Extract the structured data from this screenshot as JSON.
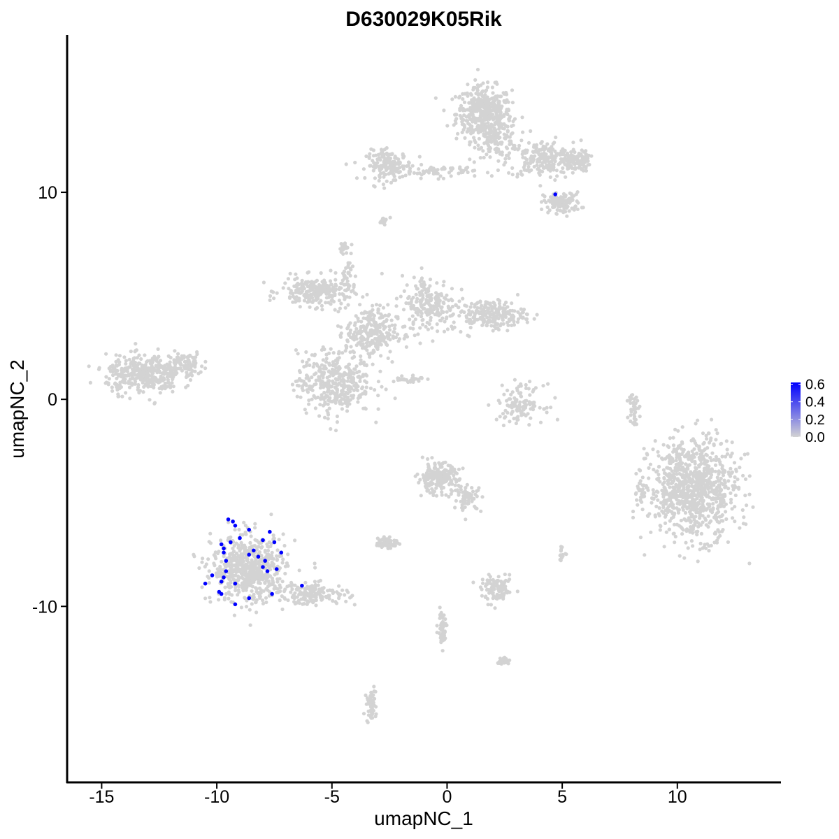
{
  "chart_data": {
    "type": "scatter",
    "title": "D630029K05Rik",
    "xlabel": "umapNC_1",
    "ylabel": "umapNC_2",
    "xlim": [
      -16.5,
      14.5
    ],
    "ylim": [
      -18.5,
      17.6
    ],
    "x_ticks": [
      "-15",
      "-10",
      "-5",
      "0",
      "5",
      "10"
    ],
    "y_ticks": [
      "10",
      "0",
      "-10"
    ],
    "grid": false,
    "legend_position": "right",
    "colors": {
      "low": "#d3d3d3",
      "high": "#0000ff"
    },
    "legend": {
      "ticks": [
        "0.6",
        "0.4",
        "0.2",
        "0.0"
      ],
      "min": 0.0,
      "max": 0.62
    },
    "background_clusters": [
      {
        "name": "cluster-top",
        "cx": 1.6,
        "cy": 13.8,
        "rx": 1.2,
        "ry": 1.3,
        "n": 420
      },
      {
        "name": "cluster-top-stalk",
        "cx": 2.2,
        "cy": 12.6,
        "rx": 0.9,
        "ry": 0.9,
        "n": 120
      },
      {
        "name": "cluster-top-arm-right",
        "cx": 4.2,
        "cy": 11.6,
        "rx": 1.6,
        "ry": 0.9,
        "n": 230
      },
      {
        "name": "cluster-top-right-tip",
        "cx": 5.6,
        "cy": 11.5,
        "rx": 0.6,
        "ry": 0.5,
        "n": 90
      },
      {
        "name": "cluster-top-bottom-right",
        "cx": 5.0,
        "cy": 9.5,
        "rx": 0.8,
        "ry": 0.5,
        "n": 110
      },
      {
        "name": "cluster-top-arm-left",
        "cx": -2.5,
        "cy": 11.3,
        "rx": 1.0,
        "ry": 0.7,
        "n": 170
      },
      {
        "name": "cluster-top-bridge",
        "cx": -0.3,
        "cy": 11.0,
        "rx": 1.5,
        "ry": 0.3,
        "n": 60
      },
      {
        "name": "cluster-central-left-arm",
        "cx": -5.7,
        "cy": 5.2,
        "rx": 1.5,
        "ry": 0.7,
        "n": 240
      },
      {
        "name": "cluster-central-hub",
        "cx": -3.3,
        "cy": 3.2,
        "rx": 1.1,
        "ry": 1.3,
        "n": 260
      },
      {
        "name": "cluster-central-right-arm",
        "cx": -0.8,
        "cy": 4.6,
        "rx": 1.2,
        "ry": 1.4,
        "n": 200
      },
      {
        "name": "cluster-central-far-right",
        "cx": 1.8,
        "cy": 4.1,
        "rx": 1.6,
        "ry": 0.7,
        "n": 220
      },
      {
        "name": "cluster-central-bottom",
        "cx": -4.9,
        "cy": 0.8,
        "rx": 1.6,
        "ry": 1.5,
        "n": 380
      },
      {
        "name": "cluster-central-stem",
        "cx": -4.3,
        "cy": 6.0,
        "rx": 0.3,
        "ry": 1.6,
        "n": 40
      },
      {
        "name": "cluster-left",
        "cx": -13.2,
        "cy": 1.2,
        "rx": 1.6,
        "ry": 0.9,
        "n": 360
      },
      {
        "name": "cluster-left-tail",
        "cx": -11.4,
        "cy": 1.7,
        "rx": 0.8,
        "ry": 0.6,
        "n": 90
      },
      {
        "name": "cluster-mid-right",
        "cx": 3.2,
        "cy": -0.2,
        "rx": 1.0,
        "ry": 0.9,
        "n": 120
      },
      {
        "name": "cluster-right-large",
        "cx": 10.7,
        "cy": -4.3,
        "rx": 1.9,
        "ry": 2.4,
        "n": 900
      },
      {
        "name": "cluster-right-left-edge",
        "cx": 8.4,
        "cy": -4.5,
        "rx": 0.3,
        "ry": 0.6,
        "n": 30
      },
      {
        "name": "cluster-center-lower",
        "cx": -0.4,
        "cy": -3.8,
        "rx": 0.9,
        "ry": 0.7,
        "n": 200
      },
      {
        "name": "cluster-center-lower-tail",
        "cx": 0.9,
        "cy": -4.8,
        "rx": 0.6,
        "ry": 0.6,
        "n": 60
      },
      {
        "name": "cluster-bottom-left-main",
        "cx": -8.6,
        "cy": -8.2,
        "rx": 1.6,
        "ry": 1.6,
        "n": 640
      },
      {
        "name": "cluster-bottom-left-tail",
        "cx": -5.8,
        "cy": -9.4,
        "rx": 1.5,
        "ry": 0.5,
        "n": 150
      },
      {
        "name": "cluster-small-a",
        "cx": -2.6,
        "cy": -6.9,
        "rx": 0.5,
        "ry": 0.3,
        "n": 60
      },
      {
        "name": "cluster-small-b",
        "cx": 2.2,
        "cy": -9.2,
        "rx": 0.7,
        "ry": 0.6,
        "n": 100
      },
      {
        "name": "cluster-small-c",
        "cx": 5.0,
        "cy": -7.5,
        "rx": 0.2,
        "ry": 0.3,
        "n": 15
      },
      {
        "name": "cluster-small-d",
        "cx": 2.4,
        "cy": -12.6,
        "rx": 0.3,
        "ry": 0.2,
        "n": 25
      },
      {
        "name": "cluster-streak-bottom",
        "cx": -3.3,
        "cy": -14.8,
        "rx": 0.2,
        "ry": 0.8,
        "n": 60
      },
      {
        "name": "cluster-streak-bottom-2",
        "cx": -0.2,
        "cy": -11.0,
        "rx": 0.2,
        "ry": 0.8,
        "n": 50
      },
      {
        "name": "cluster-streak-right",
        "cx": 8.1,
        "cy": -0.3,
        "rx": 0.2,
        "ry": 0.9,
        "n": 40
      },
      {
        "name": "cluster-streak-center",
        "cx": -1.7,
        "cy": 1.0,
        "rx": 0.7,
        "ry": 0.2,
        "n": 30
      },
      {
        "name": "cluster-top-small",
        "cx": -2.8,
        "cy": 8.6,
        "rx": 0.2,
        "ry": 0.3,
        "n": 12
      },
      {
        "name": "cluster-top-center-small",
        "cx": -4.5,
        "cy": 7.4,
        "rx": 0.2,
        "ry": 0.2,
        "n": 12
      }
    ],
    "highlighted_points": {
      "x": [
        4.7,
        -9.5,
        -9.3,
        -9.2,
        -8.6,
        -7.7,
        -9.0,
        -8.0,
        -7.5,
        -9.8,
        -9.7,
        -9.7,
        -8.4,
        -8.6,
        -7.9,
        -7.2,
        -8.0,
        -9.6,
        -9.7,
        -10.2,
        -7.8,
        -7.4,
        -9.2,
        -9.8,
        -6.3,
        -10.5,
        -9.9,
        -7.6,
        -9.8,
        -8.6,
        -9.2,
        -9.4,
        -9.6,
        -8.2
      ],
      "y": [
        9.9,
        -5.8,
        -5.9,
        -6.1,
        -6.3,
        -6.4,
        -6.7,
        -6.8,
        -6.9,
        -7.0,
        -7.2,
        -7.4,
        -7.3,
        -7.5,
        -7.8,
        -7.4,
        -8.1,
        -8.3,
        -8.6,
        -8.5,
        -8.3,
        -8.2,
        -8.9,
        -8.8,
        -9.0,
        -8.9,
        -9.3,
        -9.4,
        -9.4,
        -9.6,
        -9.9,
        -6.9,
        -7.8,
        -7.6
      ],
      "value": [
        0.62,
        0.62,
        0.62,
        0.62,
        0.62,
        0.62,
        0.62,
        0.62,
        0.62,
        0.62,
        0.62,
        0.62,
        0.62,
        0.62,
        0.62,
        0.62,
        0.62,
        0.62,
        0.62,
        0.62,
        0.62,
        0.62,
        0.62,
        0.62,
        0.62,
        0.62,
        0.62,
        0.62,
        0.62,
        0.62,
        0.62,
        0.62,
        0.62,
        0.62
      ]
    }
  }
}
